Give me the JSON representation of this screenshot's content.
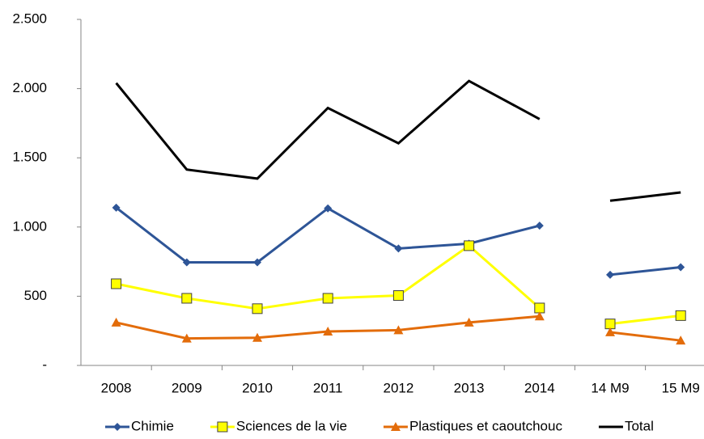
{
  "chart_data": {
    "type": "line",
    "categories": [
      "2008",
      "2009",
      "2010",
      "2011",
      "2012",
      "2013",
      "2014",
      "14 M9",
      "15 M9"
    ],
    "gap_after_category": 6,
    "series": [
      {
        "name": "Chimie",
        "color": "#2e5597",
        "marker": "diamond",
        "values": [
          1140,
          745,
          745,
          1135,
          845,
          880,
          1010,
          655,
          710
        ]
      },
      {
        "name": "Sciences de la vie",
        "color": "#ffff00",
        "marker": "square",
        "values": [
          590,
          485,
          410,
          485,
          505,
          865,
          415,
          300,
          360
        ]
      },
      {
        "name": "Plastiques et caoutchouc",
        "color": "#e36c0a",
        "marker": "triangle",
        "values": [
          310,
          195,
          200,
          245,
          255,
          310,
          355,
          240,
          180
        ]
      },
      {
        "name": "Total",
        "color": "#000000",
        "marker": "none",
        "values": [
          2040,
          1415,
          1350,
          1860,
          1605,
          2055,
          1780,
          1190,
          1250
        ]
      }
    ],
    "ylim": [
      0,
      2500
    ],
    "yticks": [
      {
        "value": 0,
        "label": "-"
      },
      500,
      {
        "value": 1000,
        "label": "1.000"
      },
      {
        "value": 1500,
        "label": "1.500"
      },
      {
        "value": 2000,
        "label": "2.000"
      },
      {
        "value": 2500,
        "label": "2.500"
      }
    ],
    "grid": false,
    "legend": "bottom"
  }
}
